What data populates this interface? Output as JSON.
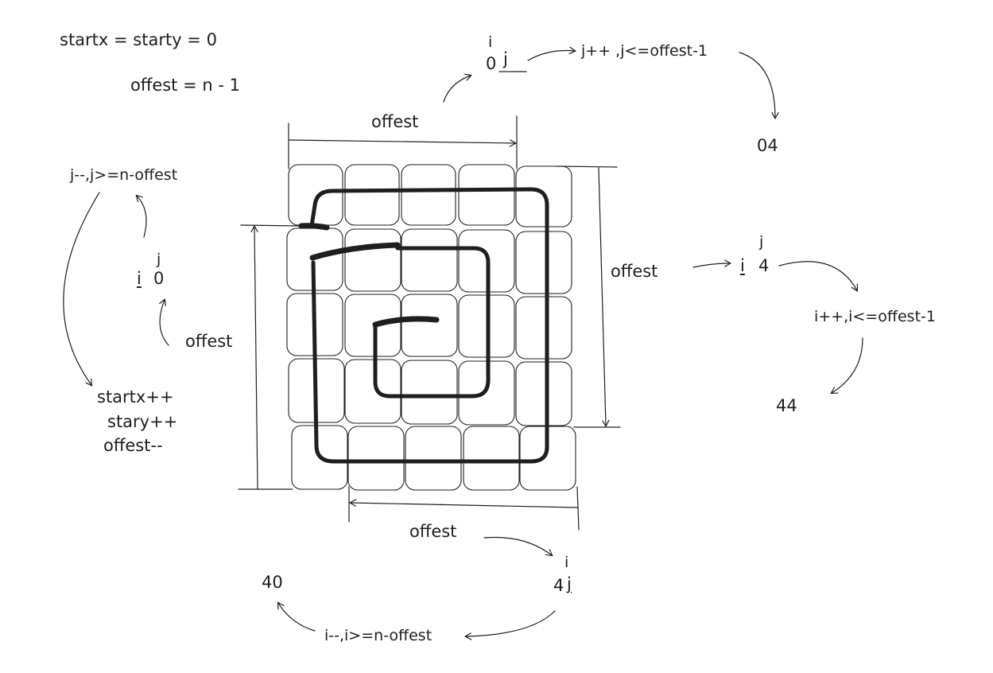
{
  "header": {
    "start_eq": "startx = starty = 0",
    "offset_eq": "offest = n - 1"
  },
  "grid": {
    "rows": 5,
    "cols": 5
  },
  "top": {
    "dimension": "offest",
    "corner_i": "i",
    "corner_0": "0",
    "corner_j": "j",
    "loop": "j++ ,j<=offest-1",
    "result": "04"
  },
  "right": {
    "dimension": "offest",
    "corner_j": "j",
    "corner_i": "i",
    "corner_4": "4",
    "loop": "i++,i<=offest-1",
    "result": "44"
  },
  "bottom": {
    "dimension": "offest",
    "corner_i": "i",
    "corner_4": "4",
    "corner_j": "j",
    "loop": "i--,i>=n-offest",
    "result": "40"
  },
  "left": {
    "dimension": "offest",
    "corner_j": "j",
    "corner_i": "i",
    "corner_0": "0",
    "loop": "j--,j>=n-offest",
    "update": [
      "startx++",
      "stary++",
      "offest--"
    ]
  }
}
